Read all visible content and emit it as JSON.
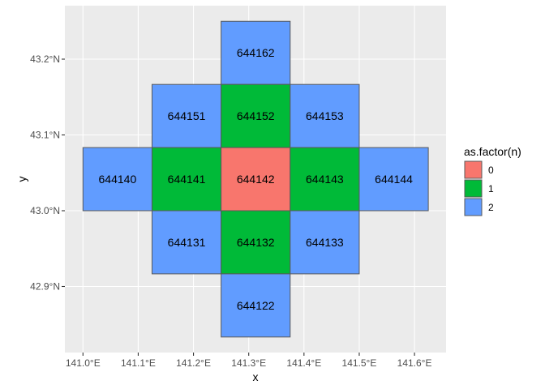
{
  "chart_data": {
    "type": "heatmap",
    "title": "",
    "xlabel": "x",
    "ylabel": "y",
    "xlim": [
      140.97,
      141.655
    ],
    "ylim": [
      42.813,
      43.27
    ],
    "x_ticks": [
      141.0,
      141.1,
      141.2,
      141.3,
      141.4,
      141.5,
      141.6
    ],
    "x_tick_labels": [
      "141.0°E",
      "141.1°E",
      "141.2°E",
      "141.3°E",
      "141.4°E",
      "141.5°E",
      "141.6°E"
    ],
    "y_ticks": [
      42.9,
      43.0,
      43.1,
      43.2
    ],
    "y_tick_labels": [
      "42.9°N",
      "43.0°N",
      "43.1°N",
      "43.2°N"
    ],
    "grid": true,
    "cell_width_deg": 0.125,
    "cell_height_deg": 0.08333,
    "cells": [
      {
        "label": "644162",
        "n": 2,
        "lon": 141.25,
        "lat": 43.16667
      },
      {
        "label": "644151",
        "n": 2,
        "lon": 141.125,
        "lat": 43.08333
      },
      {
        "label": "644152",
        "n": 1,
        "lon": 141.25,
        "lat": 43.08333
      },
      {
        "label": "644153",
        "n": 2,
        "lon": 141.375,
        "lat": 43.08333
      },
      {
        "label": "644140",
        "n": 2,
        "lon": 141.0,
        "lat": 43.0
      },
      {
        "label": "644141",
        "n": 1,
        "lon": 141.125,
        "lat": 43.0
      },
      {
        "label": "644142",
        "n": 0,
        "lon": 141.25,
        "lat": 43.0
      },
      {
        "label": "644143",
        "n": 1,
        "lon": 141.375,
        "lat": 43.0
      },
      {
        "label": "644144",
        "n": 2,
        "lon": 141.5,
        "lat": 43.0
      },
      {
        "label": "644131",
        "n": 2,
        "lon": 141.125,
        "lat": 42.91667
      },
      {
        "label": "644132",
        "n": 1,
        "lon": 141.25,
        "lat": 42.91667
      },
      {
        "label": "644133",
        "n": 2,
        "lon": 141.375,
        "lat": 42.91667
      },
      {
        "label": "644122",
        "n": 2,
        "lon": 141.25,
        "lat": 42.83333
      }
    ],
    "legend": {
      "title": "as.factor(n)",
      "placement": "right",
      "entries": [
        {
          "label": "0",
          "color": "#F8766D"
        },
        {
          "label": "1",
          "color": "#00BA38"
        },
        {
          "label": "2",
          "color": "#619CFF"
        }
      ]
    }
  }
}
